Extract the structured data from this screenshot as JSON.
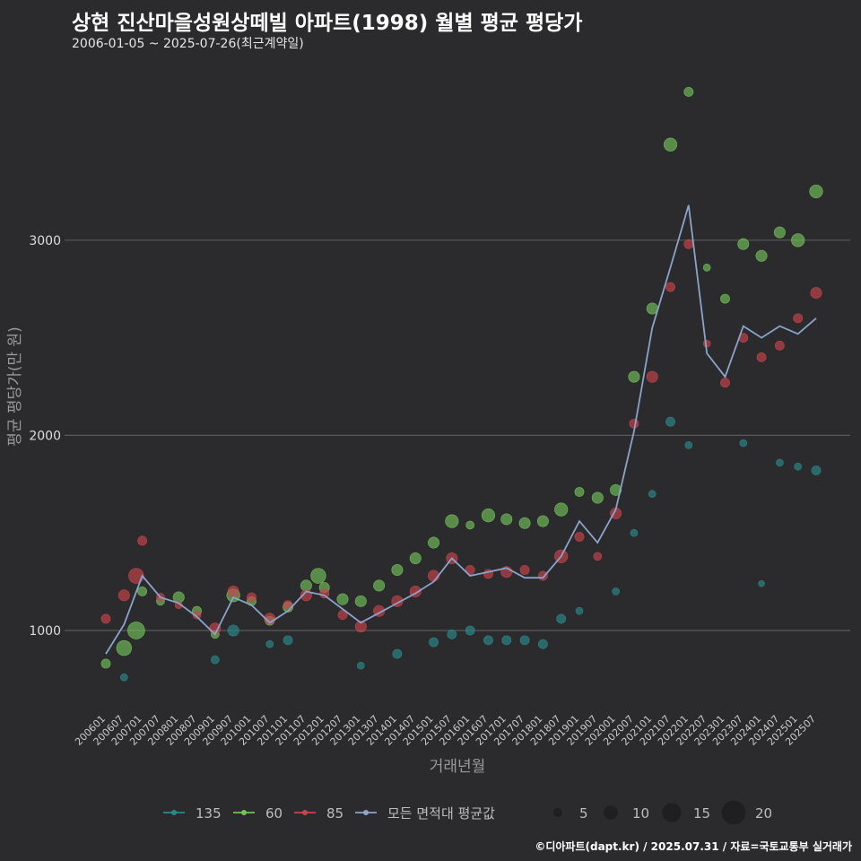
{
  "title": "상현 진산마을성원상떼빌 아파트(1998) 월별 평균 평당가",
  "subtitle": "2006-01-05 ~ 2025-07-26(최근계약일)",
  "caption": "©디아파트(dapt.kr) / 2025.07.31 / 자료=국토교통부 실거래가",
  "chart_data": {
    "type": "scatter",
    "xlabel": "거래년월",
    "ylabel": "평균 평당가(만 원)",
    "x_range": [
      "200601",
      "202507"
    ],
    "ylim": [
      600,
      3900
    ],
    "y_ticks": [
      1000,
      2000,
      3000
    ],
    "x_ticks": [
      "200601",
      "200607",
      "200701",
      "200707",
      "200801",
      "200807",
      "200901",
      "200907",
      "201001",
      "201007",
      "201101",
      "201107",
      "201201",
      "201207",
      "201301",
      "201307",
      "201401",
      "201407",
      "201501",
      "201507",
      "201601",
      "201607",
      "201701",
      "201707",
      "201801",
      "201807",
      "201901",
      "201907",
      "202001",
      "202007",
      "202101",
      "202107",
      "202201",
      "202207",
      "202301",
      "202307",
      "202401",
      "202407",
      "202501",
      "202507"
    ],
    "grid": true,
    "legend_position": "bottom",
    "legend_series": [
      "135",
      "60",
      "85",
      "모든 면적대 평균값"
    ],
    "size_legend": [
      5,
      10,
      15,
      20
    ],
    "colors": {
      "135": "#2a8a8c",
      "60": "#72c25c",
      "85": "#c8454d",
      "avg": "#8aa4cc"
    },
    "series": [
      {
        "name": "60",
        "points": [
          [
            "200601",
            830,
            6
          ],
          [
            "200607",
            910,
            12
          ],
          [
            "200611",
            1000,
            14
          ],
          [
            "200701",
            1200,
            6
          ],
          [
            "200707",
            1150,
            5
          ],
          [
            "200801",
            1170,
            8
          ],
          [
            "200807",
            1100,
            6
          ],
          [
            "200901",
            980,
            5
          ],
          [
            "200907",
            1180,
            10
          ],
          [
            "201001",
            1150,
            6
          ],
          [
            "201007",
            1050,
            6
          ],
          [
            "201101",
            1120,
            7
          ],
          [
            "201107",
            1230,
            8
          ],
          [
            "201111",
            1280,
            12
          ],
          [
            "201201",
            1220,
            7
          ],
          [
            "201207",
            1160,
            8
          ],
          [
            "201301",
            1150,
            8
          ],
          [
            "201307",
            1230,
            8
          ],
          [
            "201401",
            1310,
            8
          ],
          [
            "201407",
            1370,
            8
          ],
          [
            "201501",
            1450,
            8
          ],
          [
            "201507",
            1560,
            10
          ],
          [
            "201601",
            1540,
            5
          ],
          [
            "201607",
            1590,
            10
          ],
          [
            "201701",
            1570,
            8
          ],
          [
            "201707",
            1550,
            8
          ],
          [
            "201801",
            1560,
            8
          ],
          [
            "201807",
            1620,
            10
          ],
          [
            "201901",
            1710,
            6
          ],
          [
            "201907",
            1680,
            8
          ],
          [
            "202001",
            1720,
            8
          ],
          [
            "202007",
            2300,
            8
          ],
          [
            "202101",
            2650,
            8
          ],
          [
            "202107",
            3490,
            10
          ],
          [
            "202201",
            3760,
            6
          ],
          [
            "202207",
            2860,
            4
          ],
          [
            "202301",
            2700,
            6
          ],
          [
            "202307",
            2980,
            8
          ],
          [
            "202401",
            2920,
            8
          ],
          [
            "202407",
            3040,
            8
          ],
          [
            "202501",
            3000,
            10
          ],
          [
            "202507",
            3250,
            10
          ]
        ]
      },
      {
        "name": "85",
        "points": [
          [
            "200601",
            1060,
            6
          ],
          [
            "200607",
            1180,
            8
          ],
          [
            "200611",
            1280,
            12
          ],
          [
            "200701",
            1460,
            6
          ],
          [
            "200707",
            1170,
            5
          ],
          [
            "200801",
            1130,
            4
          ],
          [
            "200807",
            1080,
            5
          ],
          [
            "200901",
            1010,
            8
          ],
          [
            "200907",
            1200,
            8
          ],
          [
            "201001",
            1170,
            6
          ],
          [
            "201007",
            1060,
            8
          ],
          [
            "201101",
            1130,
            6
          ],
          [
            "201107",
            1180,
            8
          ],
          [
            "201201",
            1190,
            6
          ],
          [
            "201207",
            1080,
            6
          ],
          [
            "201301",
            1020,
            8
          ],
          [
            "201307",
            1100,
            8
          ],
          [
            "201401",
            1150,
            8
          ],
          [
            "201407",
            1200,
            8
          ],
          [
            "201501",
            1280,
            8
          ],
          [
            "201507",
            1370,
            8
          ],
          [
            "201601",
            1310,
            6
          ],
          [
            "201607",
            1290,
            6
          ],
          [
            "201701",
            1300,
            8
          ],
          [
            "201707",
            1310,
            6
          ],
          [
            "201801",
            1280,
            6
          ],
          [
            "201807",
            1380,
            10
          ],
          [
            "201901",
            1480,
            6
          ],
          [
            "201907",
            1380,
            5
          ],
          [
            "202001",
            1600,
            8
          ],
          [
            "202007",
            2060,
            6
          ],
          [
            "202101",
            2300,
            8
          ],
          [
            "202107",
            2760,
            6
          ],
          [
            "202201",
            2980,
            6
          ],
          [
            "202207",
            2470,
            4
          ],
          [
            "202301",
            2270,
            6
          ],
          [
            "202307",
            2500,
            6
          ],
          [
            "202401",
            2400,
            6
          ],
          [
            "202407",
            2460,
            6
          ],
          [
            "202501",
            2600,
            6
          ],
          [
            "202507",
            2730,
            8
          ]
        ]
      },
      {
        "name": "135",
        "points": [
          [
            "200607",
            760,
            4
          ],
          [
            "200901",
            850,
            5
          ],
          [
            "200907",
            1000,
            8
          ],
          [
            "201007",
            930,
            4
          ],
          [
            "201101",
            950,
            6
          ],
          [
            "201301",
            820,
            4
          ],
          [
            "201401",
            880,
            6
          ],
          [
            "201501",
            940,
            6
          ],
          [
            "201507",
            980,
            6
          ],
          [
            "201601",
            1000,
            6
          ],
          [
            "201607",
            950,
            6
          ],
          [
            "201701",
            950,
            6
          ],
          [
            "201707",
            950,
            6
          ],
          [
            "201801",
            930,
            6
          ],
          [
            "201807",
            1060,
            6
          ],
          [
            "201901",
            1100,
            4
          ],
          [
            "202001",
            1200,
            4
          ],
          [
            "202007",
            1500,
            4
          ],
          [
            "202101",
            1700,
            4
          ],
          [
            "202107",
            2070,
            6
          ],
          [
            "202201",
            1950,
            4
          ],
          [
            "202307",
            1960,
            4
          ],
          [
            "202401",
            1240,
            3
          ],
          [
            "202407",
            1860,
            4
          ],
          [
            "202501",
            1840,
            4
          ],
          [
            "202507",
            1820,
            6
          ]
        ]
      }
    ],
    "average_line": {
      "name": "모든 면적대 평균값",
      "points": [
        [
          "200601",
          880
        ],
        [
          "200607",
          1030
        ],
        [
          "200701",
          1280
        ],
        [
          "200707",
          1170
        ],
        [
          "200801",
          1140
        ],
        [
          "200807",
          1070
        ],
        [
          "200901",
          980
        ],
        [
          "200907",
          1170
        ],
        [
          "201001",
          1130
        ],
        [
          "201007",
          1040
        ],
        [
          "201101",
          1100
        ],
        [
          "201107",
          1200
        ],
        [
          "201201",
          1180
        ],
        [
          "201207",
          1110
        ],
        [
          "201301",
          1040
        ],
        [
          "201307",
          1090
        ],
        [
          "201401",
          1140
        ],
        [
          "201407",
          1190
        ],
        [
          "201501",
          1250
        ],
        [
          "201507",
          1370
        ],
        [
          "201601",
          1280
        ],
        [
          "201607",
          1300
        ],
        [
          "201701",
          1320
        ],
        [
          "201707",
          1270
        ],
        [
          "201801",
          1270
        ],
        [
          "201807",
          1380
        ],
        [
          "201901",
          1560
        ],
        [
          "201907",
          1450
        ],
        [
          "202001",
          1620
        ],
        [
          "202007",
          2020
        ],
        [
          "202101",
          2550
        ],
        [
          "202107",
          2860
        ],
        [
          "202201",
          3180
        ],
        [
          "202207",
          2420
        ],
        [
          "202301",
          2300
        ],
        [
          "202307",
          2560
        ],
        [
          "202401",
          2500
        ],
        [
          "202407",
          2560
        ],
        [
          "202501",
          2520
        ],
        [
          "202507",
          2600
        ]
      ]
    }
  }
}
